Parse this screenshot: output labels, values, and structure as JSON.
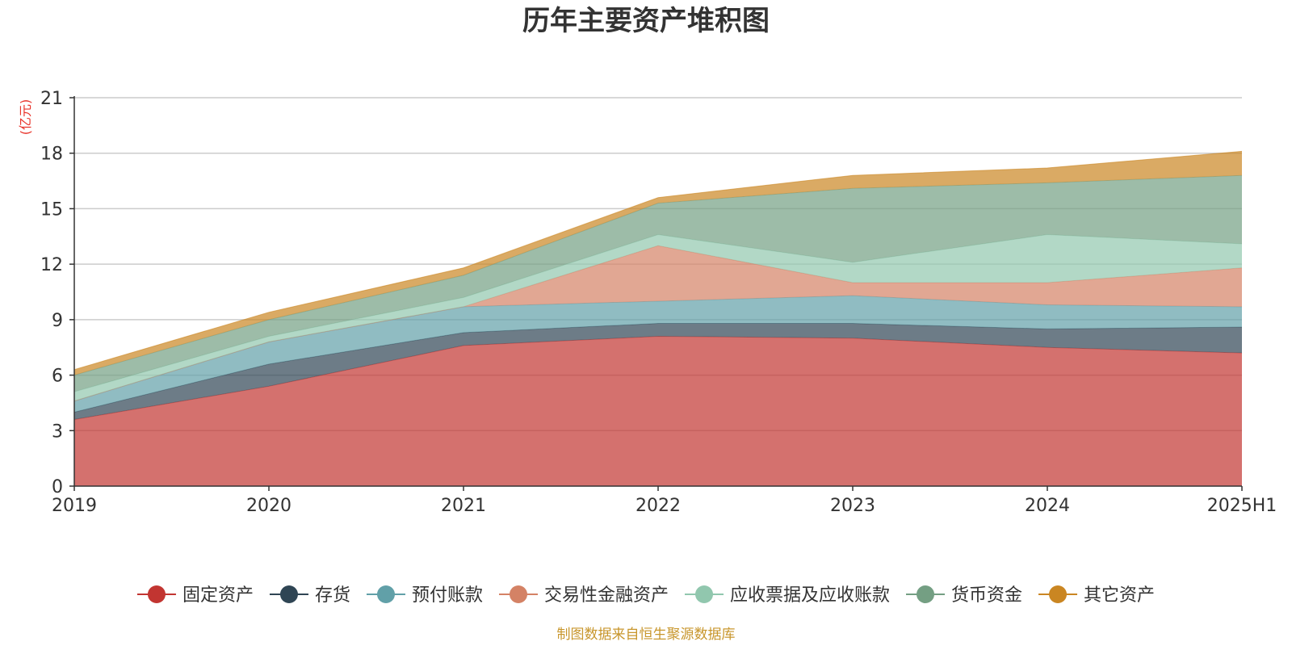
{
  "chart_data": {
    "type": "area",
    "stacked": true,
    "title": "历年主要资产堆积图",
    "ylabel": "(亿元)",
    "xlabel": "",
    "categories": [
      "2019",
      "2020",
      "2021",
      "2022",
      "2023",
      "2024",
      "2025H1"
    ],
    "ylim": [
      0,
      21
    ],
    "yticks": [
      0,
      3,
      6,
      9,
      12,
      15,
      18,
      21
    ],
    "ytick_labels": [
      "0",
      "3",
      "6",
      "9",
      "12",
      "15",
      "18",
      "21"
    ],
    "grid": true,
    "legend_position": "bottom",
    "series": [
      {
        "name": "固定资产",
        "color": "#c23531",
        "values": [
          3.6,
          5.4,
          7.6,
          8.1,
          8.0,
          7.5,
          7.2
        ]
      },
      {
        "name": "存货",
        "color": "#2f4554",
        "values": [
          0.4,
          1.2,
          0.7,
          0.7,
          0.8,
          1.0,
          1.4
        ]
      },
      {
        "name": "预付账款",
        "color": "#61a0a8",
        "values": [
          0.6,
          1.2,
          1.4,
          1.2,
          1.5,
          1.3,
          1.1
        ]
      },
      {
        "name": "交易性金融资产",
        "color": "#d48265",
        "values": [
          0.0,
          0.0,
          0.0,
          3.0,
          0.7,
          1.2,
          2.1
        ]
      },
      {
        "name": "应收票据及应收账款",
        "color": "#91c7ae",
        "values": [
          0.5,
          0.3,
          0.5,
          0.6,
          1.1,
          2.6,
          1.3
        ]
      },
      {
        "name": "货币资金",
        "color": "#749f83",
        "values": [
          0.9,
          0.9,
          1.2,
          1.7,
          4.0,
          2.8,
          3.7
        ]
      },
      {
        "name": "其它资产",
        "color": "#ca8622",
        "values": [
          0.3,
          0.4,
          0.4,
          0.3,
          0.7,
          0.8,
          1.3
        ]
      }
    ]
  },
  "footer": {
    "source": "制图数据来自恒生聚源数据库"
  }
}
